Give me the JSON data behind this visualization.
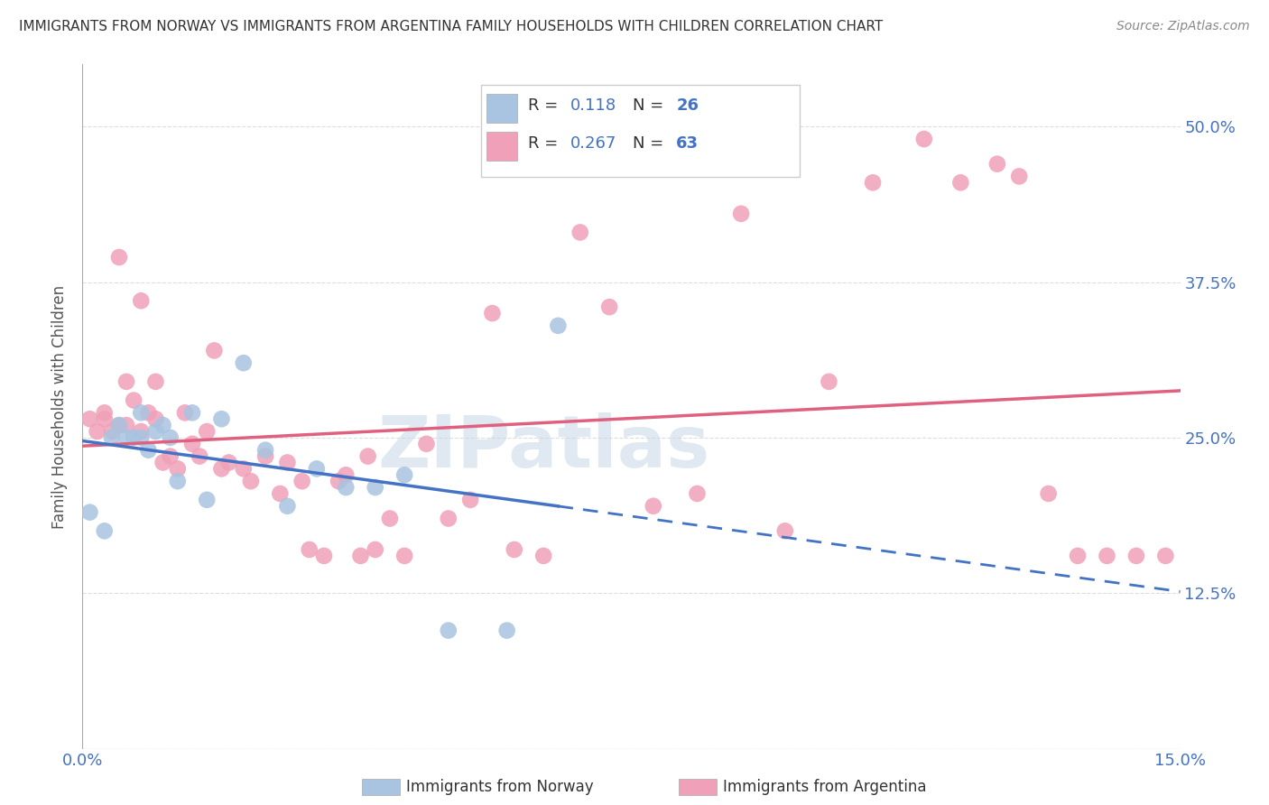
{
  "title": "IMMIGRANTS FROM NORWAY VS IMMIGRANTS FROM ARGENTINA FAMILY HOUSEHOLDS WITH CHILDREN CORRELATION CHART",
  "source": "Source: ZipAtlas.com",
  "ylabel": "Family Households with Children",
  "xlim": [
    0.0,
    0.15
  ],
  "ylim": [
    0.0,
    0.55
  ],
  "xtick_positions": [
    0.0,
    0.03,
    0.06,
    0.09,
    0.12,
    0.15
  ],
  "xtick_labels": [
    "0.0%",
    "",
    "",
    "",
    "",
    "15.0%"
  ],
  "ytick_positions": [
    0.0,
    0.125,
    0.25,
    0.375,
    0.5
  ],
  "ytick_labels": [
    "",
    "12.5%",
    "25.0%",
    "37.5%",
    "50.0%"
  ],
  "norway_R": 0.118,
  "norway_N": 26,
  "argentina_R": 0.267,
  "argentina_N": 63,
  "norway_scatter_color": "#a8c4e0",
  "argentina_scatter_color": "#f0a0b8",
  "norway_line_color": "#4472c4",
  "argentina_line_color": "#e06080",
  "legend_text_color": "#4472c4",
  "label_color": "#4472c4",
  "title_color": "#333333",
  "source_color": "#888888",
  "grid_color": "#dddddd",
  "background_color": "#ffffff",
  "watermark_text": "ZIPatlas",
  "watermark_color": "#c8d8e8",
  "norway_x": [
    0.001,
    0.003,
    0.004,
    0.005,
    0.006,
    0.007,
    0.008,
    0.008,
    0.009,
    0.01,
    0.011,
    0.012,
    0.013,
    0.015,
    0.017,
    0.019,
    0.022,
    0.025,
    0.028,
    0.032,
    0.036,
    0.04,
    0.044,
    0.05,
    0.058,
    0.065
  ],
  "norway_y": [
    0.19,
    0.175,
    0.25,
    0.26,
    0.25,
    0.25,
    0.27,
    0.25,
    0.24,
    0.255,
    0.26,
    0.25,
    0.215,
    0.27,
    0.2,
    0.265,
    0.31,
    0.24,
    0.195,
    0.225,
    0.21,
    0.21,
    0.22,
    0.095,
    0.095,
    0.34
  ],
  "argentina_x": [
    0.001,
    0.002,
    0.003,
    0.003,
    0.004,
    0.005,
    0.005,
    0.006,
    0.006,
    0.007,
    0.008,
    0.008,
    0.009,
    0.01,
    0.01,
    0.011,
    0.012,
    0.013,
    0.014,
    0.015,
    0.016,
    0.017,
    0.018,
    0.019,
    0.02,
    0.022,
    0.023,
    0.025,
    0.027,
    0.028,
    0.03,
    0.031,
    0.033,
    0.035,
    0.036,
    0.038,
    0.039,
    0.04,
    0.042,
    0.044,
    0.047,
    0.05,
    0.053,
    0.056,
    0.059,
    0.063,
    0.068,
    0.072,
    0.078,
    0.084,
    0.09,
    0.096,
    0.102,
    0.108,
    0.115,
    0.12,
    0.125,
    0.128,
    0.132,
    0.136,
    0.14,
    0.144,
    0.148
  ],
  "argentina_y": [
    0.265,
    0.255,
    0.265,
    0.27,
    0.255,
    0.26,
    0.395,
    0.26,
    0.295,
    0.28,
    0.255,
    0.36,
    0.27,
    0.265,
    0.295,
    0.23,
    0.235,
    0.225,
    0.27,
    0.245,
    0.235,
    0.255,
    0.32,
    0.225,
    0.23,
    0.225,
    0.215,
    0.235,
    0.205,
    0.23,
    0.215,
    0.16,
    0.155,
    0.215,
    0.22,
    0.155,
    0.235,
    0.16,
    0.185,
    0.155,
    0.245,
    0.185,
    0.2,
    0.35,
    0.16,
    0.155,
    0.415,
    0.355,
    0.195,
    0.205,
    0.43,
    0.175,
    0.295,
    0.455,
    0.49,
    0.455,
    0.47,
    0.46,
    0.205,
    0.155,
    0.155,
    0.155,
    0.155
  ],
  "bottom_legend_norway": "Immigrants from Norway",
  "bottom_legend_argentina": "Immigrants from Argentina"
}
